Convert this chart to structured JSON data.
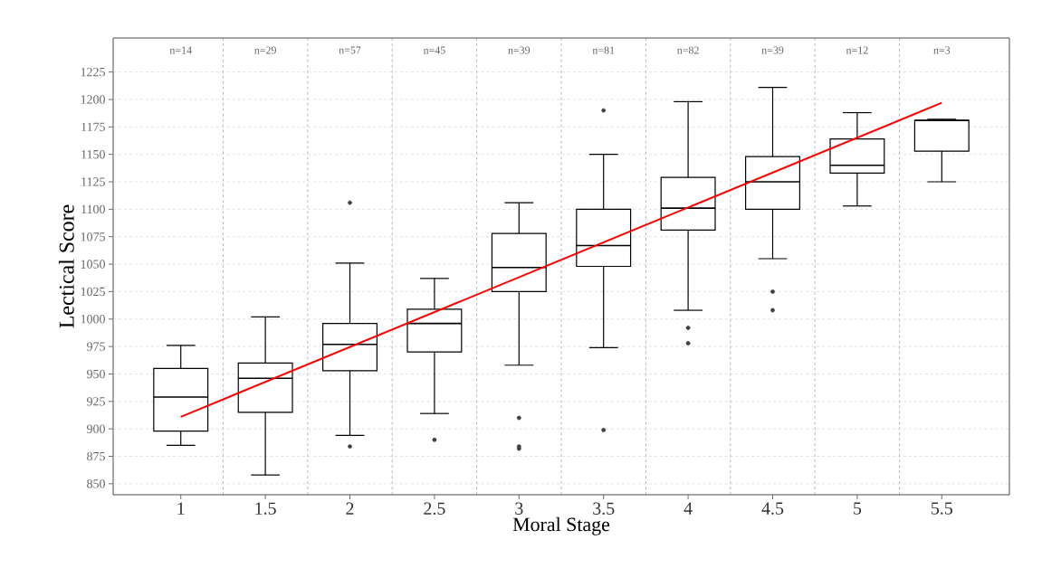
{
  "chart_data": {
    "type": "box",
    "xlabel": "Moral Stage",
    "ylabel": "Lectical Score",
    "xlim": [
      0.6,
      5.9
    ],
    "xticks": [
      1,
      1.5,
      2,
      2.5,
      3,
      3.5,
      4,
      4.5,
      5,
      5.5
    ],
    "ylim": [
      840,
      1256
    ],
    "yticks": [
      850,
      875,
      900,
      925,
      950,
      975,
      1000,
      1025,
      1050,
      1075,
      1100,
      1125,
      1150,
      1175,
      1200,
      1225
    ],
    "grid": true,
    "series": [
      {
        "color": "#000000",
        "x": [
          1,
          1.5,
          2,
          2.5,
          3,
          3.5,
          4,
          4.5,
          5,
          5.5
        ],
        "boxes": [
          {
            "low": 885,
            "q1": 898,
            "median": 929,
            "q3": 955,
            "high": 976
          },
          {
            "low": 858,
            "q1": 915,
            "median": 946,
            "q3": 960,
            "high": 1002
          },
          {
            "low": 894,
            "q1": 953,
            "median": 977,
            "q3": 996,
            "high": 1051,
            "outliers": [
              1106,
              884
            ]
          },
          {
            "low": 914,
            "q1": 970,
            "median": 996,
            "q3": 1009,
            "high": 1037,
            "outliers": [
              890
            ]
          },
          {
            "low": 958,
            "q1": 1025,
            "median": 1047,
            "q3": 1078,
            "high": 1106,
            "outliers": [
              910,
              884,
              882
            ]
          },
          {
            "low": 974,
            "q1": 1048,
            "median": 1067,
            "q3": 1100,
            "high": 1150,
            "outliers": [
              1190,
              899
            ]
          },
          {
            "low": 1008,
            "q1": 1081,
            "median": 1101,
            "q3": 1129,
            "high": 1198,
            "outliers": [
              992,
              978
            ]
          },
          {
            "low": 1055,
            "q1": 1100,
            "median": 1125,
            "q3": 1148,
            "high": 1211,
            "outliers": [
              1025,
              1008
            ]
          },
          {
            "low": 1103,
            "q1": 1133,
            "median": 1140,
            "q3": 1164,
            "high": 1188
          },
          {
            "low": 1125,
            "q1": 1153,
            "median": 1181,
            "q3": 1181,
            "high": 1182
          }
        ]
      },
      {
        "type": "line",
        "color": "#ff0000",
        "x": [
          1,
          5.5
        ],
        "values": [
          911,
          1197
        ]
      }
    ],
    "annotations": [
      "n=14",
      "n=29",
      "n=57",
      "n=45",
      "n=39",
      "n=81",
      "n=82",
      "n=39",
      "n=12",
      "n=3"
    ]
  }
}
